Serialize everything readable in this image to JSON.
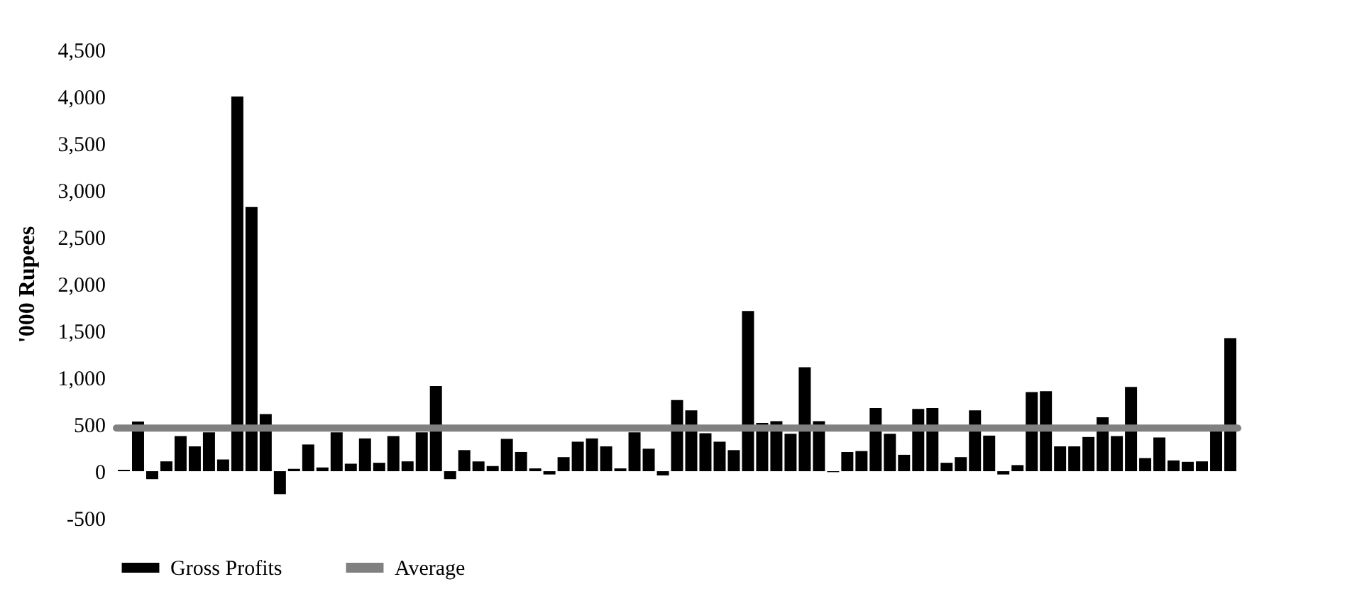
{
  "chart_data": {
    "type": "bar",
    "ylabel": "'000 Rupees",
    "categories": [
      null,
      null,
      null,
      null,
      null,
      null,
      null,
      null,
      null,
      null,
      null,
      null,
      null,
      null,
      null,
      null,
      null,
      null,
      null,
      null,
      null,
      null,
      null,
      null,
      null,
      null,
      null,
      null,
      null,
      null,
      null,
      null,
      null,
      null,
      null,
      null,
      null,
      null,
      null,
      null,
      null,
      null,
      null,
      null,
      null,
      null,
      null,
      null,
      null,
      null,
      null,
      null,
      null,
      null,
      null,
      null,
      null,
      null,
      null,
      null,
      null,
      null,
      null,
      null,
      null,
      null,
      null,
      null,
      null,
      null,
      null,
      null,
      null,
      null,
      null,
      null,
      null,
      null,
      null
    ],
    "series": [
      {
        "name": "Gross Profits",
        "color": "#000000",
        "values": [
          15,
          530,
          -85,
          105,
          375,
          265,
          415,
          125,
          4000,
          2820,
          610,
          -245,
          25,
          285,
          40,
          415,
          80,
          350,
          90,
          375,
          105,
          415,
          910,
          -85,
          225,
          105,
          55,
          345,
          205,
          30,
          -35,
          150,
          315,
          350,
          265,
          30,
          415,
          240,
          -45,
          760,
          650,
          405,
          315,
          225,
          1710,
          515,
          535,
          400,
          1110,
          535,
          -10,
          205,
          215,
          675,
          400,
          175,
          665,
          675,
          90,
          150,
          650,
          380,
          -35,
          65,
          845,
          855,
          265,
          265,
          365,
          575,
          375,
          900,
          140,
          360,
          115,
          100,
          105,
          425,
          1420
        ]
      }
    ],
    "ref_lines": [
      {
        "axis": "y",
        "value": 460,
        "label": "Average",
        "color": "#808080",
        "line_style": "solid"
      }
    ],
    "ylim": [
      -500,
      4500
    ],
    "yticks": [
      {
        "value": -500,
        "label": "-500"
      },
      0,
      500,
      {
        "value": 1000,
        "label": "1,000"
      },
      {
        "value": 1500,
        "label": "1,500"
      },
      {
        "value": 2000,
        "label": "2,000"
      },
      {
        "value": 2500,
        "label": "2,500"
      },
      {
        "value": 3000,
        "label": "3,000"
      },
      {
        "value": 3500,
        "label": "3,500"
      },
      {
        "value": 4000,
        "label": "4,000"
      },
      {
        "value": 4500,
        "label": "4,500"
      }
    ],
    "tick_labels": "y",
    "grid": false,
    "legend": "bottom"
  }
}
